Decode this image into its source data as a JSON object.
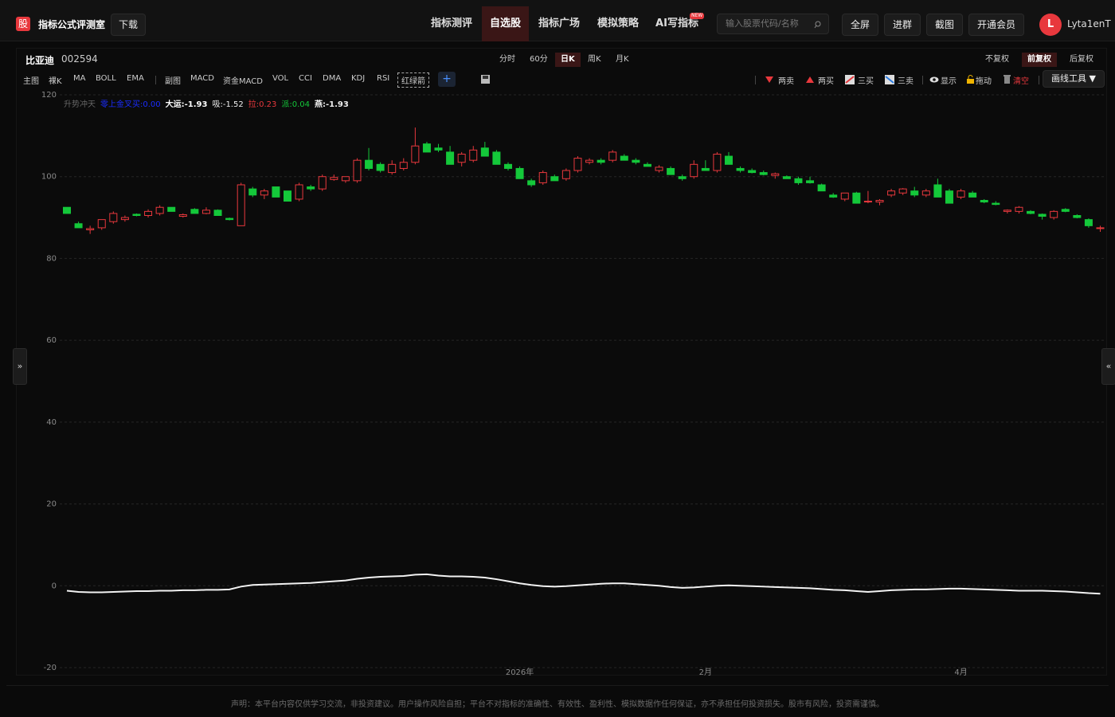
{
  "header": {
    "logo": "股",
    "title": "指标公式评测室",
    "download": "下载",
    "nav": [
      "指标测评",
      "自选股",
      "指标广场",
      "模拟策略",
      "AI写指标"
    ],
    "nav_badge": "NEW",
    "search_placeholder": "输入股票代码/名称",
    "buttons": [
      "全屏",
      "进群",
      "截图",
      "开通会员"
    ],
    "avatar": "L",
    "username": "Lyta1enT"
  },
  "stock": {
    "name": "比亚迪",
    "code": "002594",
    "periods": [
      "分时",
      "60分",
      "日K",
      "周K",
      "月K"
    ],
    "adjust": [
      "不复权",
      "前复权",
      "后复权"
    ]
  },
  "toolbar": {
    "main_label": "主图",
    "main": [
      "裸K",
      "MA",
      "BOLL",
      "EMA"
    ],
    "sub_label": "副图",
    "sub": [
      "MACD",
      "资金MACD",
      "VOL",
      "CCI",
      "DMA",
      "KDJ",
      "RSI",
      "红绿箭"
    ],
    "add": "+",
    "signals": [
      "两卖",
      "两买",
      "三买",
      "三卖"
    ],
    "tools": [
      "显示",
      "拖动",
      "清空"
    ],
    "draw": "画线工具 ▼",
    "side_left": "»",
    "side_right": "«"
  },
  "chart_data": {
    "type": "candlestick",
    "indicator_name": "升势冲天",
    "indicator_labels": [
      "零上金叉买:0.00",
      "大运:-1.93",
      "吸:-1.52",
      "拉:0.23",
      "派:0.04",
      "燕:-1.93"
    ],
    "categories": [
      null,
      null,
      null,
      null,
      null,
      null,
      null,
      null,
      null,
      null,
      null,
      null,
      null,
      null,
      null,
      null,
      null,
      null,
      null,
      null,
      null,
      null,
      null,
      null,
      null,
      null,
      null,
      null,
      null,
      null,
      null,
      null,
      null,
      null,
      null,
      null,
      null,
      null,
      null,
      "2026年",
      null,
      null,
      null,
      null,
      null,
      null,
      null,
      null,
      null,
      null,
      null,
      null,
      null,
      null,
      null,
      "2月",
      null,
      null,
      null,
      null,
      null,
      null,
      null,
      null,
      null,
      null,
      null,
      null,
      null,
      null,
      null,
      null,
      null,
      null,
      null,
      null,
      null,
      "4月",
      null,
      null,
      null,
      null,
      null,
      null,
      null,
      null,
      null,
      null,
      null,
      null
    ],
    "open": [
      92.5,
      88.5,
      87,
      87.5,
      89,
      89.5,
      90.8,
      90.5,
      91,
      92.5,
      90.3,
      92,
      91,
      91.8,
      89.8,
      88,
      97,
      95.5,
      97.5,
      96.5,
      94.5,
      97.5,
      97,
      99.3,
      99,
      99,
      104,
      103,
      101,
      102,
      103.5,
      108,
      107,
      106,
      103.5,
      104,
      107,
      106,
      103,
      102,
      99,
      98.5,
      100,
      99.5,
      101.5,
      103.5,
      104,
      104,
      105,
      104,
      103,
      101.5,
      102,
      100,
      100,
      102,
      101.5,
      105,
      102,
      101.5,
      101,
      100.3,
      100,
      99.5,
      99,
      98,
      95.5,
      94.5,
      96,
      93.8,
      93.8,
      95.5,
      96,
      96.5,
      95.5,
      98,
      96.5,
      95,
      96,
      94.2,
      93.5,
      91.5,
      91.5,
      91.5,
      90.8,
      90,
      92,
      90.5,
      89.5,
      87.3
    ],
    "high": [
      92.5,
      89,
      88,
      89.5,
      91.5,
      90.5,
      91,
      92,
      93,
      92.5,
      91,
      92.3,
      92.5,
      92,
      90,
      98.5,
      97.5,
      97,
      97.5,
      96.5,
      98.5,
      98,
      100.5,
      100.5,
      100,
      104.5,
      107,
      103.5,
      104,
      104.5,
      112,
      108.5,
      108,
      107.5,
      106,
      107.5,
      108.5,
      106.5,
      103.5,
      102.5,
      99.5,
      101.5,
      100.5,
      102,
      105,
      104.5,
      104.5,
      106.5,
      105.5,
      104.5,
      103.5,
      102.8,
      102.5,
      100.5,
      104,
      104,
      106,
      106,
      102.5,
      102,
      101.5,
      101,
      100.3,
      100,
      100,
      98.3,
      96,
      96,
      96.3,
      96.5,
      94.5,
      97,
      97.2,
      97.5,
      97,
      99.5,
      97,
      97,
      96.5,
      94.5,
      94,
      92,
      92.8,
      91.8,
      91,
      91.8,
      92.3,
      90.8,
      89.8,
      88
    ],
    "low": [
      91,
      87.5,
      86,
      87,
      88.5,
      89,
      90.3,
      90,
      90.5,
      91.5,
      90,
      91,
      90.8,
      90.5,
      89.3,
      88,
      95,
      94.5,
      95,
      94,
      94,
      96.5,
      96.5,
      99,
      98.5,
      98.5,
      101.5,
      101,
      100.5,
      101.5,
      103,
      106,
      106,
      103,
      102.5,
      103.5,
      105,
      103,
      101.5,
      99.5,
      97.5,
      98,
      99,
      99,
      101,
      103,
      103,
      103.5,
      104,
      103,
      102.5,
      101,
      100.5,
      99,
      99.5,
      101.5,
      101,
      103,
      101,
      100.8,
      100.3,
      99.5,
      99.5,
      98,
      98.3,
      96.5,
      94.8,
      94,
      93.5,
      93.5,
      93,
      95,
      95.5,
      95,
      95,
      95,
      93.5,
      94.5,
      95,
      93.5,
      93,
      91,
      91,
      90.8,
      89.5,
      89.5,
      91.3,
      89.8,
      87.5,
      86.5
    ],
    "close": [
      91,
      87.5,
      87.3,
      89.5,
      91,
      90,
      90.5,
      91.5,
      92.5,
      91.5,
      90.7,
      91,
      91.8,
      90.5,
      89.5,
      98,
      95.5,
      96.5,
      95,
      94,
      98,
      97,
      100,
      99.8,
      100,
      104,
      102,
      101.5,
      103,
      103.5,
      107.5,
      106,
      106.5,
      103,
      105.5,
      106.5,
      105,
      103,
      102,
      99.5,
      98,
      101,
      99,
      101.5,
      104.5,
      104,
      103.5,
      106,
      104,
      103.5,
      102.5,
      102.3,
      100.5,
      99.5,
      103,
      101.5,
      105.5,
      103,
      101.5,
      101,
      100.5,
      100.7,
      99.5,
      98.5,
      98.5,
      96.5,
      95,
      96,
      93.5,
      94,
      94.2,
      96.5,
      97,
      95.5,
      96.5,
      95,
      93.5,
      96.5,
      95,
      93.8,
      93.2,
      91.8,
      92.5,
      91,
      90.3,
      91.5,
      91.5,
      90,
      88,
      87.5
    ],
    "line": {
      "color": "#f2f2f2",
      "values": [
        -1.2,
        -1.5,
        -1.6,
        -1.6,
        -1.5,
        -1.4,
        -1.3,
        -1.3,
        -1.2,
        -1.2,
        -1.1,
        -1.1,
        -1.0,
        -1.0,
        -0.9,
        -0.2,
        0.2,
        0.3,
        0.4,
        0.5,
        0.6,
        0.7,
        0.9,
        1.1,
        1.3,
        1.7,
        2.0,
        2.2,
        2.3,
        2.4,
        2.7,
        2.8,
        2.5,
        2.3,
        2.3,
        2.2,
        2.0,
        1.6,
        1.1,
        0.6,
        0.2,
        -0.1,
        -0.2,
        -0.1,
        0.1,
        0.3,
        0.5,
        0.6,
        0.6,
        0.4,
        0.2,
        0.0,
        -0.3,
        -0.5,
        -0.4,
        -0.2,
        0.0,
        0.1,
        0.0,
        -0.1,
        -0.2,
        -0.3,
        -0.4,
        -0.5,
        -0.6,
        -0.8,
        -1.0,
        -1.1,
        -1.3,
        -1.5,
        -1.3,
        -1.1,
        -1.0,
        -0.9,
        -0.9,
        -0.8,
        -0.7,
        -0.7,
        -0.8,
        -0.9,
        -1.0,
        -1.1,
        -1.2,
        -1.2,
        -1.2,
        -1.3,
        -1.4,
        -1.6,
        -1.8,
        -1.93
      ]
    },
    "up_color": "#e8383d",
    "down_color": "#14c83a",
    "ylim": [
      -20,
      120
    ],
    "yticks": [
      -20,
      0,
      20,
      40,
      60,
      80,
      100,
      120
    ],
    "grid": true
  },
  "footer": "声明：本平台内容仅供学习交流，非投资建议。用户操作风险自担；平台不对指标的准确性、有效性、盈利性、模拟数据作任何保证，亦不承担任何投资损失。股市有风险，投资需谨慎。"
}
